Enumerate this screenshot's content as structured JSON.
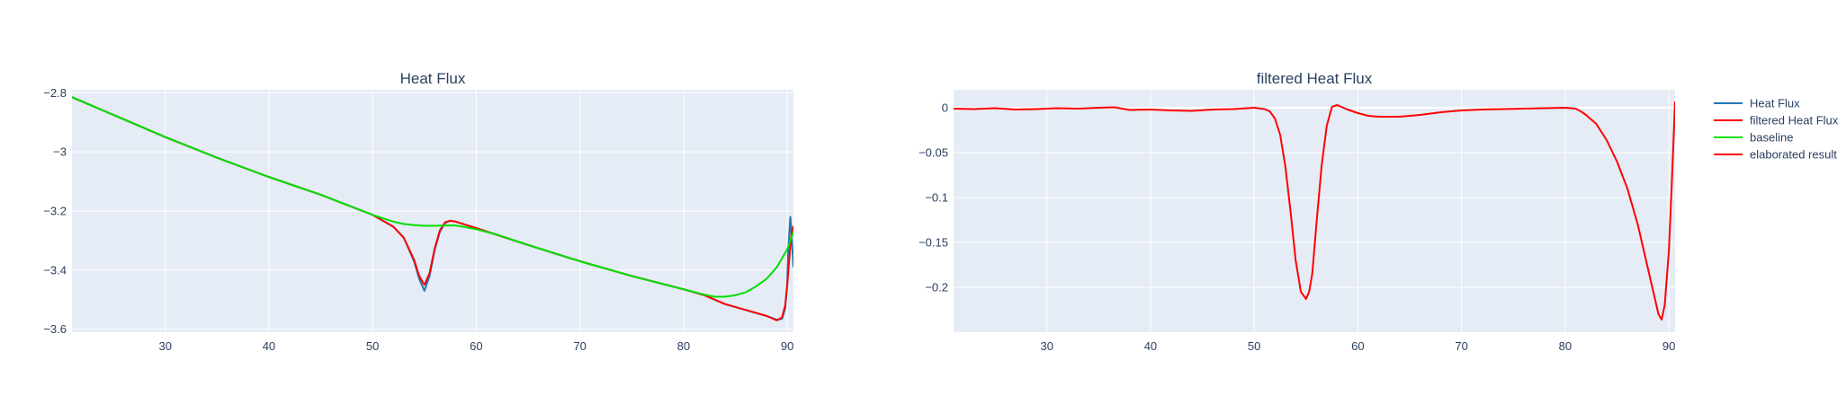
{
  "chart_data": [
    {
      "type": "line",
      "title": "Heat Flux",
      "xlim": [
        21,
        90.6
      ],
      "ylim": [
        -3.61,
        -2.79
      ],
      "x_ticks": [
        30,
        40,
        50,
        60,
        70,
        80,
        90
      ],
      "y_ticks": [
        -2.8,
        -3,
        -3.2,
        -3.4,
        -3.6
      ],
      "y_tick_labels": [
        "−2.8",
        "−3",
        "−3.2",
        "−3.4",
        "−3.6"
      ],
      "grid": true,
      "series": [
        {
          "name": "Heat Flux",
          "color": "#1f77b4",
          "x": [
            21,
            25,
            30,
            35,
            40,
            45,
            50,
            51,
            52,
            53,
            54,
            54.5,
            55,
            55.5,
            56,
            56.5,
            57,
            57.5,
            58,
            60,
            65,
            70,
            75,
            80,
            82,
            84,
            86,
            88,
            89,
            89.5,
            89.8,
            90,
            90.1,
            90.3,
            90.45,
            90.6
          ],
          "y": [
            -2.815,
            -2.875,
            -2.95,
            -3.02,
            -3.085,
            -3.145,
            -3.213,
            -3.233,
            -3.253,
            -3.29,
            -3.37,
            -3.43,
            -3.47,
            -3.42,
            -3.33,
            -3.27,
            -3.24,
            -3.233,
            -3.236,
            -3.258,
            -3.315,
            -3.37,
            -3.42,
            -3.465,
            -3.485,
            -3.515,
            -3.535,
            -3.555,
            -3.568,
            -3.565,
            -3.53,
            -3.45,
            -3.33,
            -3.22,
            -3.3,
            -3.39
          ]
        },
        {
          "name": "filtered Heat Flux",
          "color": "#ff0000",
          "x": [
            21,
            25,
            30,
            35,
            40,
            45,
            50,
            51,
            52,
            53,
            54,
            54.5,
            55,
            55.5,
            56,
            56.5,
            57,
            57.5,
            58,
            60,
            65,
            70,
            75,
            80,
            82,
            84,
            86,
            88,
            89,
            89.5,
            89.8,
            90,
            90.2,
            90.4,
            90.6
          ],
          "y": [
            -2.815,
            -2.875,
            -2.95,
            -3.02,
            -3.085,
            -3.145,
            -3.213,
            -3.233,
            -3.253,
            -3.29,
            -3.365,
            -3.42,
            -3.45,
            -3.41,
            -3.325,
            -3.265,
            -3.238,
            -3.233,
            -3.236,
            -3.258,
            -3.315,
            -3.37,
            -3.42,
            -3.465,
            -3.485,
            -3.515,
            -3.535,
            -3.555,
            -3.57,
            -3.56,
            -3.52,
            -3.45,
            -3.36,
            -3.28,
            -3.25
          ]
        },
        {
          "name": "baseline",
          "color": "#00e000",
          "x": [
            21,
            25,
            30,
            35,
            40,
            45,
            50,
            51,
            52,
            53,
            54,
            55,
            56,
            57,
            58,
            59,
            60,
            62,
            65,
            70,
            75,
            80,
            82,
            83,
            84,
            85,
            86,
            87,
            88,
            89,
            90,
            90.6
          ],
          "y": [
            -2.815,
            -2.875,
            -2.95,
            -3.02,
            -3.085,
            -3.145,
            -3.213,
            -3.225,
            -3.236,
            -3.244,
            -3.248,
            -3.25,
            -3.25,
            -3.249,
            -3.249,
            -3.255,
            -3.262,
            -3.28,
            -3.315,
            -3.37,
            -3.42,
            -3.465,
            -3.483,
            -3.49,
            -3.49,
            -3.485,
            -3.475,
            -3.455,
            -3.43,
            -3.39,
            -3.33,
            -3.27
          ]
        }
      ]
    },
    {
      "type": "line",
      "title": "filtered Heat Flux",
      "xlim": [
        21,
        90.6
      ],
      "ylim": [
        -0.25,
        0.02
      ],
      "x_ticks": [
        30,
        40,
        50,
        60,
        70,
        80,
        90
      ],
      "y_ticks": [
        0,
        -0.05,
        -0.1,
        -0.15,
        -0.2
      ],
      "y_tick_labels": [
        "0",
        "−0.05",
        "−0.1",
        "−0.15",
        "−0.2"
      ],
      "grid": true,
      "series": [
        {
          "name": "elaborated result",
          "color": "#ff0000",
          "x": [
            21,
            23,
            25,
            27,
            29,
            31,
            33,
            35,
            36.5,
            38,
            40,
            42,
            44,
            46,
            48,
            50,
            51,
            51.5,
            52,
            52.5,
            53,
            53.5,
            54,
            54.5,
            55,
            55.3,
            55.6,
            56,
            56.5,
            57,
            57.5,
            58,
            59,
            60,
            61,
            62,
            63,
            64,
            66,
            68,
            70,
            72,
            74,
            76,
            78,
            80,
            81,
            81.5,
            82,
            83,
            84,
            85,
            86,
            87,
            88,
            88.5,
            89,
            89.3,
            89.6,
            90,
            90.3,
            90.6
          ],
          "y": [
            -0.001,
            -0.0015,
            -0.0005,
            -0.002,
            -0.0015,
            -0.0005,
            -0.001,
            0.0,
            0.0005,
            -0.0025,
            -0.002,
            -0.003,
            -0.0035,
            -0.002,
            -0.0015,
            0.0,
            -0.0015,
            -0.004,
            -0.012,
            -0.03,
            -0.065,
            -0.115,
            -0.17,
            -0.205,
            -0.213,
            -0.205,
            -0.185,
            -0.13,
            -0.065,
            -0.02,
            0.001,
            0.003,
            -0.002,
            -0.006,
            -0.009,
            -0.01,
            -0.01,
            -0.01,
            -0.008,
            -0.005,
            -0.003,
            -0.002,
            -0.0015,
            -0.001,
            -0.0005,
            0.0,
            -0.001,
            -0.004,
            -0.008,
            -0.018,
            -0.036,
            -0.06,
            -0.09,
            -0.13,
            -0.18,
            -0.205,
            -0.23,
            -0.236,
            -0.22,
            -0.16,
            -0.08,
            0.007
          ]
        }
      ]
    }
  ],
  "legend": {
    "placement": "right",
    "items": [
      {
        "label": "Heat Flux",
        "color": "#1f77b4"
      },
      {
        "label": "filtered Heat Flux",
        "color": "#ff0000"
      },
      {
        "label": "baseline",
        "color": "#00e000"
      },
      {
        "label": "elaborated result",
        "color": "#ff0000"
      }
    ]
  },
  "theme": {
    "plot_bg": "#e5ecf6",
    "grid_color": "#ffffff",
    "text_color": "#2a3f5f"
  }
}
